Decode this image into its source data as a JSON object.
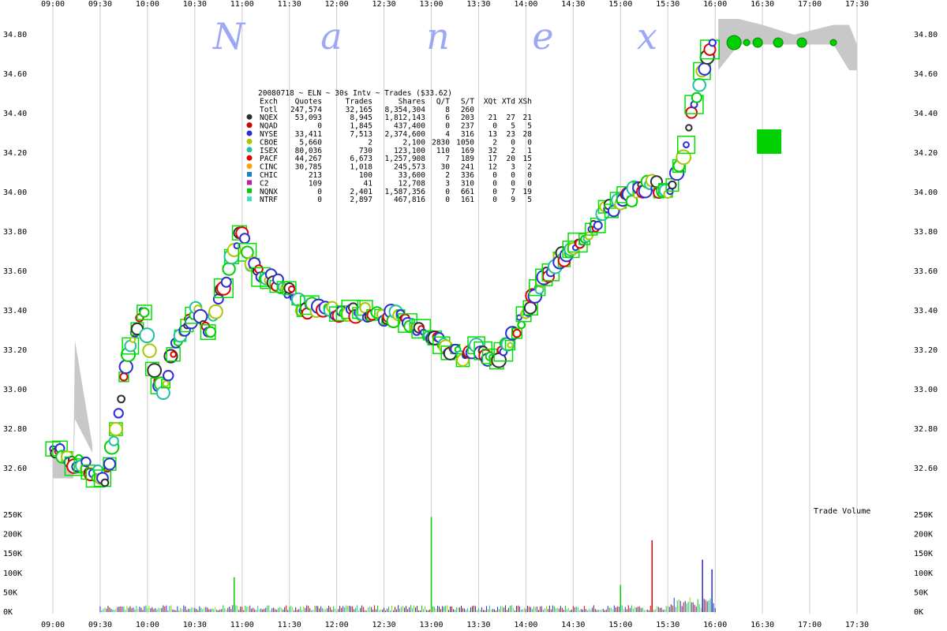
{
  "watermark_letters": [
    "N",
    "a",
    "n",
    "e",
    "x"
  ],
  "colors": {
    "grid": "#cccccc",
    "box": "#00e000",
    "extended_band": "#c8c8c8",
    "nqex": "#303030",
    "nqad": "#d00000",
    "nyse": "#2c2cd8",
    "cboe": "#a8c800",
    "isex": "#20c0a0",
    "pacf": "#e00000",
    "cinc": "#ffa000",
    "chic": "#1e80c0",
    "c2": "#c020a0",
    "nqnx": "#00d000",
    "ntrf": "#40e0c0"
  },
  "legend": {
    "title": "20080718 ~ ELN ~ 30s Intv ~ Trades ($33.62)",
    "header": [
      "Exch",
      "Quotes",
      "Trades",
      "Shares",
      "Q/T",
      "S/T",
      "XQt",
      "XTd",
      "XSh"
    ],
    "rows": [
      {
        "exch": "Totl",
        "quotes": "247,574",
        "trades": "32,165",
        "shares": "8,354,304",
        "qt": "8",
        "st": "260",
        "xqt": "",
        "xtd": "",
        "xsh": "",
        "color": ""
      },
      {
        "exch": "NQEX",
        "quotes": "53,093",
        "trades": "8,945",
        "shares": "1,812,143",
        "qt": "6",
        "st": "203",
        "xqt": "21",
        "xtd": "27",
        "xsh": "21",
        "color": "#303030",
        "marker": "circle"
      },
      {
        "exch": "NQAD",
        "quotes": "0",
        "trades": "1,845",
        "shares": "437,400",
        "qt": "0",
        "st": "237",
        "xqt": "0",
        "xtd": "5",
        "xsh": "5",
        "color": "#d00000",
        "marker": "circle"
      },
      {
        "exch": "NYSE",
        "quotes": "33,411",
        "trades": "7,513",
        "shares": "2,374,600",
        "qt": "4",
        "st": "316",
        "xqt": "13",
        "xtd": "23",
        "xsh": "28",
        "color": "#2c2cd8",
        "marker": "circle"
      },
      {
        "exch": "CBOE",
        "quotes": "5,660",
        "trades": "2",
        "shares": "2,100",
        "qt": "2830",
        "st": "1050",
        "xqt": "2",
        "xtd": "0",
        "xsh": "0",
        "color": "#a8c800",
        "marker": "circle"
      },
      {
        "exch": "ISEX",
        "quotes": "80,036",
        "trades": "730",
        "shares": "123,100",
        "qt": "110",
        "st": "169",
        "xqt": "32",
        "xtd": "2",
        "xsh": "1",
        "color": "#20c0a0",
        "marker": "circle"
      },
      {
        "exch": "PACF",
        "quotes": "44,267",
        "trades": "6,673",
        "shares": "1,257,908",
        "qt": "7",
        "st": "189",
        "xqt": "17",
        "xtd": "20",
        "xsh": "15",
        "color": "#e00000",
        "marker": "circle"
      },
      {
        "exch": "CINC",
        "quotes": "30,785",
        "trades": "1,018",
        "shares": "245,573",
        "qt": "30",
        "st": "241",
        "xqt": "12",
        "xtd": "3",
        "xsh": "2",
        "color": "#ffa000",
        "marker": "circle"
      },
      {
        "exch": "CHIC",
        "quotes": "213",
        "trades": "100",
        "shares": "33,600",
        "qt": "2",
        "st": "336",
        "xqt": "0",
        "xtd": "0",
        "xsh": "0",
        "color": "#1e80c0",
        "marker": "square"
      },
      {
        "exch": "C2",
        "quotes": "109",
        "trades": "41",
        "shares": "12,708",
        "qt": "3",
        "st": "310",
        "xqt": "0",
        "xtd": "0",
        "xsh": "0",
        "color": "#c020a0",
        "marker": "square"
      },
      {
        "exch": "NQNX",
        "quotes": "0",
        "trades": "2,401",
        "shares": "1,587,356",
        "qt": "0",
        "st": "661",
        "xqt": "0",
        "xtd": "7",
        "xsh": "19",
        "color": "#00d000",
        "marker": "square"
      },
      {
        "exch": "NTRF",
        "quotes": "0",
        "trades": "2,897",
        "shares": "467,816",
        "qt": "0",
        "st": "161",
        "xqt": "0",
        "xtd": "9",
        "xsh": "5",
        "color": "#40e0c0",
        "marker": "square"
      }
    ]
  },
  "chart_data": {
    "type": "scatter",
    "xlabel": "",
    "ylabel": "",
    "x_ticks": [
      "09:00",
      "09:30",
      "10:00",
      "10:30",
      "11:00",
      "11:30",
      "12:00",
      "12:30",
      "13:00",
      "13:30",
      "14:00",
      "14:30",
      "15:00",
      "15:30",
      "16:00",
      "16:30",
      "17:00",
      "17:30"
    ],
    "xlim": [
      "09:00",
      "17:45"
    ],
    "y_ticks": [
      "32.60",
      "32.80",
      "33.00",
      "33.20",
      "33.40",
      "33.60",
      "33.80",
      "34.00",
      "34.20",
      "34.40",
      "34.60",
      "34.80"
    ],
    "ylim": [
      32.45,
      34.9
    ],
    "price_series": {
      "time": [
        "09:00",
        "09:33",
        "09:36",
        "09:40",
        "09:45",
        "09:52",
        "09:58",
        "10:03",
        "10:10",
        "10:18",
        "10:25",
        "10:32",
        "10:40",
        "10:45",
        "10:50",
        "10:55",
        "11:00",
        "11:05",
        "11:12",
        "11:20",
        "11:30",
        "11:40",
        "11:50",
        "12:00",
        "12:15",
        "12:30",
        "12:45",
        "12:55",
        "13:05",
        "13:12",
        "13:20",
        "13:30",
        "13:40",
        "13:50",
        "14:00",
        "14:10",
        "14:20",
        "14:30",
        "14:40",
        "14:50",
        "15:00",
        "15:10",
        "15:20",
        "15:30",
        "15:40",
        "15:45",
        "15:50",
        "15:55",
        "16:00"
      ],
      "price": [
        32.7,
        32.55,
        32.65,
        32.8,
        33.05,
        33.3,
        33.4,
        33.1,
        33.0,
        33.25,
        33.35,
        33.4,
        33.3,
        33.45,
        33.55,
        33.7,
        33.8,
        33.65,
        33.6,
        33.55,
        33.5,
        33.4,
        33.42,
        33.38,
        33.4,
        33.38,
        33.35,
        33.3,
        33.25,
        33.2,
        33.18,
        33.2,
        33.15,
        33.25,
        33.4,
        33.55,
        33.65,
        33.7,
        33.8,
        33.9,
        33.95,
        34.0,
        34.05,
        34.0,
        34.2,
        34.4,
        34.55,
        34.7,
        34.75
      ]
    },
    "extended_hours_band": {
      "pre_market": {
        "time": [
          "09:00",
          "09:10",
          "09:13",
          "09:14",
          "09:25"
        ],
        "low": [
          32.55,
          32.55,
          32.55,
          32.85,
          32.68
        ],
        "high": [
          32.65,
          32.65,
          32.65,
          33.25,
          32.72
        ]
      },
      "post_market": {
        "time": [
          "16:02",
          "16:15",
          "16:30",
          "16:50",
          "17:15",
          "17:25",
          "17:30"
        ],
        "low": [
          34.62,
          34.75,
          34.75,
          34.75,
          34.75,
          34.62,
          34.62
        ],
        "high": [
          34.88,
          34.88,
          34.85,
          34.8,
          34.85,
          34.85,
          34.75
        ]
      }
    },
    "post_market_trades": [
      {
        "time": "16:12",
        "price": 34.76,
        "size": "large"
      },
      {
        "time": "16:20",
        "price": 34.76,
        "size": "small"
      },
      {
        "time": "16:27",
        "price": 34.76,
        "size": "medium"
      },
      {
        "time": "16:40",
        "price": 34.76,
        "size": "medium"
      },
      {
        "time": "16:55",
        "price": 34.76,
        "size": "medium"
      },
      {
        "time": "17:15",
        "price": 34.76,
        "size": "small"
      }
    ],
    "large_box": {
      "time": "16:34",
      "price": 34.26
    },
    "volume_panel": {
      "label": "Trade Volume",
      "y_ticks": [
        "0K",
        "50K",
        "100K",
        "150K",
        "200K",
        "250K"
      ],
      "ylim": [
        0,
        250000
      ],
      "spikes": [
        {
          "time": "13:00",
          "value": 245000
        },
        {
          "time": "15:52",
          "value": 135000
        },
        {
          "time": "15:20",
          "value": 185000
        },
        {
          "time": "10:55",
          "value": 90000
        },
        {
          "time": "15:58",
          "value": 110000
        },
        {
          "time": "15:00",
          "value": 70000
        }
      ]
    }
  }
}
